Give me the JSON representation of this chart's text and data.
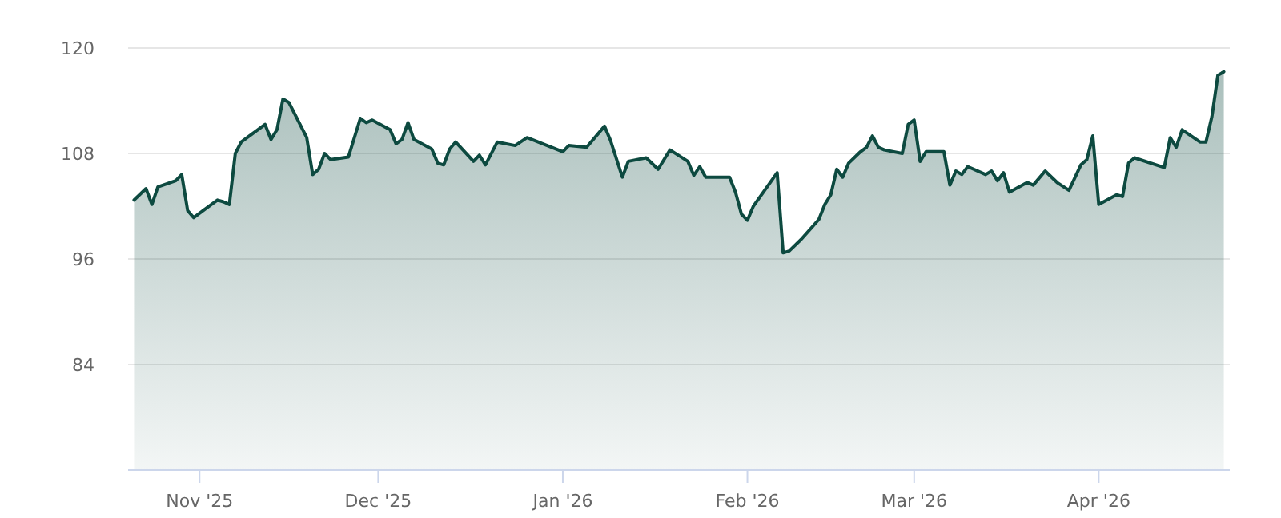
{
  "chart_data": {
    "type": "area",
    "x": [
      "2025-10-21",
      "2025-10-23",
      "2025-10-24",
      "2025-10-25",
      "2025-10-28",
      "2025-10-29",
      "2025-10-30",
      "2025-10-31",
      "2025-11-04",
      "2025-11-05",
      "2025-11-06",
      "2025-11-07",
      "2025-11-08",
      "2025-11-12",
      "2025-11-13",
      "2025-11-14",
      "2025-11-15",
      "2025-11-16",
      "2025-11-19",
      "2025-11-20",
      "2025-11-21",
      "2025-11-22",
      "2025-11-23",
      "2025-11-26",
      "2025-11-28",
      "2025-11-29",
      "2025-11-30",
      "2025-12-03",
      "2025-12-04",
      "2025-12-05",
      "2025-12-06",
      "2025-12-07",
      "2025-12-10",
      "2025-12-11",
      "2025-12-12",
      "2025-12-13",
      "2025-12-14",
      "2025-12-17",
      "2025-12-18",
      "2025-12-19",
      "2025-12-21",
      "2025-12-24",
      "2025-12-26",
      "2026-01-01",
      "2026-01-02",
      "2026-01-05",
      "2026-01-08",
      "2026-01-09",
      "2026-01-11",
      "2026-01-12",
      "2026-01-15",
      "2026-01-17",
      "2026-01-19",
      "2026-01-22",
      "2026-01-23",
      "2026-01-24",
      "2026-01-25",
      "2026-01-29",
      "2026-01-30",
      "2026-01-31",
      "2026-02-01",
      "2026-02-02",
      "2026-02-06",
      "2026-02-07",
      "2026-02-08",
      "2026-02-10",
      "2026-02-13",
      "2026-02-14",
      "2026-02-15",
      "2026-02-16",
      "2026-02-17",
      "2026-02-18",
      "2026-02-20",
      "2026-02-21",
      "2026-02-22",
      "2026-02-23",
      "2026-02-24",
      "2026-02-27",
      "2026-02-28",
      "2026-03-01",
      "2026-03-02",
      "2026-03-03",
      "2026-03-06",
      "2026-03-07",
      "2026-03-08",
      "2026-03-09",
      "2026-03-10",
      "2026-03-13",
      "2026-03-14",
      "2026-03-15",
      "2026-03-16",
      "2026-03-17",
      "2026-03-20",
      "2026-03-21",
      "2026-03-23",
      "2026-03-25",
      "2026-03-27",
      "2026-03-29",
      "2026-03-30",
      "2026-03-31",
      "2026-04-01",
      "2026-04-04",
      "2026-04-05",
      "2026-04-06",
      "2026-04-07",
      "2026-04-12",
      "2026-04-13",
      "2026-04-14",
      "2026-04-15",
      "2026-04-18",
      "2026-04-19",
      "2026-04-20",
      "2026-04-21",
      "2026-04-22"
    ],
    "series": [
      {
        "color": "#0d4a40",
        "values": [
          102.7,
          104.0,
          102.2,
          104.2,
          104.9,
          105.6,
          101.5,
          100.7,
          102.7,
          102.5,
          102.2,
          108.0,
          109.3,
          111.3,
          109.6,
          110.7,
          114.2,
          113.8,
          109.8,
          105.6,
          106.2,
          108.0,
          107.3,
          107.6,
          112.0,
          111.5,
          111.8,
          110.7,
          109.1,
          109.6,
          111.5,
          109.6,
          108.5,
          106.9,
          106.7,
          108.5,
          109.3,
          107.1,
          107.8,
          106.7,
          109.3,
          108.9,
          109.8,
          108.2,
          108.9,
          108.7,
          111.1,
          109.5,
          105.3,
          107.1,
          107.5,
          106.2,
          108.4,
          107.1,
          105.5,
          106.5,
          105.3,
          105.3,
          103.6,
          101.1,
          100.4,
          102.0,
          105.8,
          96.7,
          96.9,
          98.2,
          100.5,
          102.2,
          103.3,
          106.2,
          105.3,
          106.9,
          108.2,
          108.7,
          110.0,
          108.7,
          108.4,
          108.0,
          111.3,
          111.8,
          107.1,
          108.2,
          108.2,
          104.4,
          106.0,
          105.6,
          106.5,
          105.6,
          106.0,
          104.9,
          105.8,
          103.6,
          104.7,
          104.4,
          106.0,
          104.7,
          103.8,
          106.7,
          107.3,
          110.0,
          102.2,
          103.3,
          103.1,
          106.9,
          107.5,
          106.4,
          109.8,
          108.7,
          110.7,
          109.3,
          109.3,
          112.2,
          116.9,
          117.3
        ]
      }
    ],
    "xlim": [
      "2025-10-20",
      "2026-04-23"
    ],
    "xticks": [
      {
        "value": "2025-11-01",
        "label": "Nov '25"
      },
      {
        "value": "2025-12-01",
        "label": "Dec '25"
      },
      {
        "value": "2026-01-01",
        "label": "Jan '26"
      },
      {
        "value": "2026-02-01",
        "label": "Feb '26"
      },
      {
        "value": "2026-03-01",
        "label": "Mar '26"
      },
      {
        "value": "2026-04-01",
        "label": "Apr '26"
      }
    ],
    "ylim": [
      72,
      120
    ],
    "yticks": [
      84,
      96,
      108,
      120
    ],
    "grid": "y"
  }
}
